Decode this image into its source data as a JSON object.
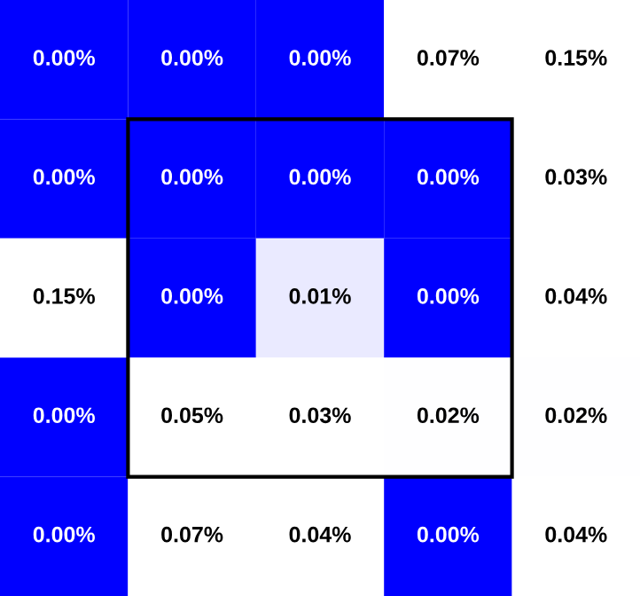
{
  "chart_data": {
    "type": "heatmap",
    "categories": [
      null,
      null,
      null,
      null,
      null
    ],
    "y_categories": [
      null,
      null,
      null,
      null,
      null
    ],
    "cells": [
      [
        0.0,
        0.0,
        0.0,
        0.07,
        0.15
      ],
      [
        0.0,
        0.0,
        0.0,
        0.0,
        0.03
      ],
      [
        0.15,
        0.0,
        0.01,
        0.0,
        0.04
      ],
      [
        0.0,
        0.05,
        0.03,
        0.02,
        0.02
      ],
      [
        0.0,
        0.07,
        0.04,
        0.0,
        0.04
      ]
    ],
    "cell_labels": [
      [
        "0.00%",
        "0.00%",
        "0.00%",
        "0.07%",
        "0.15%"
      ],
      [
        "0.00%",
        "0.00%",
        "0.00%",
        "0.00%",
        "0.03%"
      ],
      [
        "0.15%",
        "0.00%",
        "0.01%",
        "0.00%",
        "0.04%"
      ],
      [
        "0.00%",
        "0.05%",
        "0.03%",
        "0.02%",
        "0.02%"
      ],
      [
        "0.00%",
        "0.07%",
        "0.04%",
        "0.00%",
        "0.04%"
      ]
    ],
    "grid": false
  }
}
